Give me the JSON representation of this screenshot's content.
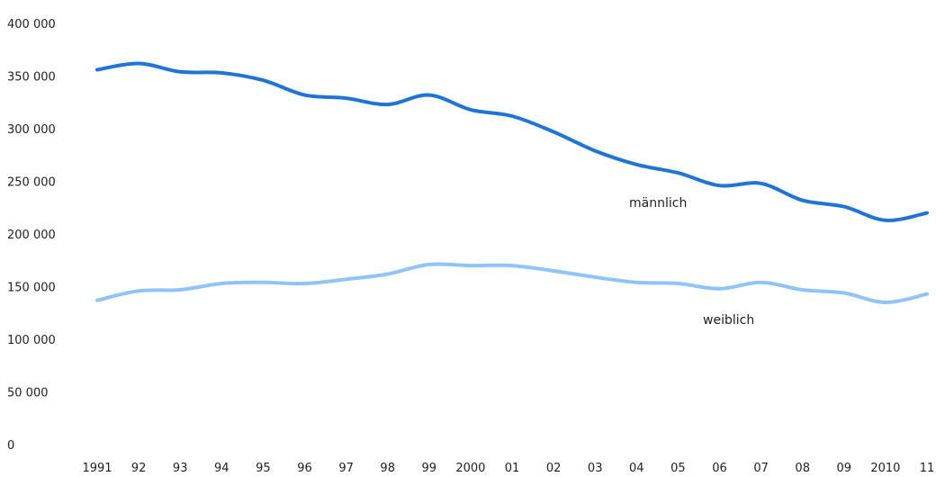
{
  "chart_data": {
    "type": "line",
    "title": "",
    "xlabel": "",
    "ylabel": "",
    "ylim": [
      0,
      400000
    ],
    "y_ticks": [
      0,
      50000,
      100000,
      150000,
      200000,
      250000,
      300000,
      350000,
      400000
    ],
    "y_tick_labels": [
      "0",
      "50 000",
      "100 000",
      "150 000",
      "200 000",
      "250 000",
      "300 000",
      "350 000",
      "400 000"
    ],
    "categories": [
      "1991",
      "92",
      "93",
      "94",
      "95",
      "96",
      "97",
      "98",
      "99",
      "2000",
      "01",
      "02",
      "03",
      "04",
      "05",
      "06",
      "07",
      "08",
      "09",
      "2010",
      "11"
    ],
    "grid": false,
    "legend": "none (direct labels)",
    "series": [
      {
        "name": "männlich",
        "color": "#1f74d6",
        "values": [
          356000,
          362000,
          354000,
          353000,
          346000,
          332000,
          329000,
          323000,
          332000,
          318000,
          312000,
          297000,
          279000,
          266000,
          258000,
          246000,
          248000,
          232000,
          226000,
          213000,
          220000
        ]
      },
      {
        "name": "weiblich",
        "color": "#8fc4f8",
        "values": [
          137000,
          146000,
          147000,
          153000,
          154000,
          153000,
          157000,
          162000,
          171000,
          170000,
          170000,
          165000,
          159000,
          154000,
          153000,
          148000,
          154000,
          147000,
          144000,
          135000,
          143000
        ]
      }
    ]
  }
}
